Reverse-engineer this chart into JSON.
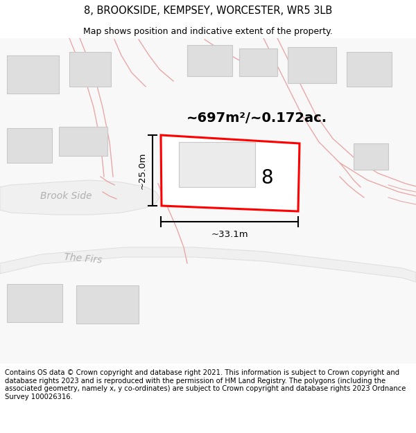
{
  "title": "8, BROOKSIDE, KEMPSEY, WORCESTER, WR5 3LB",
  "subtitle": "Map shows position and indicative extent of the property.",
  "footer": "Contains OS data © Crown copyright and database right 2021. This information is subject to Crown copyright and database rights 2023 and is reproduced with the permission of HM Land Registry. The polygons (including the associated geometry, namely x, y co-ordinates) are subject to Crown copyright and database rights 2023 Ordnance Survey 100026316.",
  "area_label": "~697m²/~0.172ac.",
  "width_label": "~33.1m",
  "height_label": "~25.0m",
  "number_label": "8",
  "map_bg": "#f8f8f8",
  "road_fill": "#f2d8d8",
  "road_edge": "#e8a8a8",
  "building_fill": "#dedede",
  "building_edge": "#c8c8c8",
  "plot_fill": "#ffffff",
  "plot_edge": "#ff0000",
  "dim_color": "#000000",
  "street_color": "#aaaaaa",
  "title_fontsize": 10.5,
  "subtitle_fontsize": 9,
  "footer_fontsize": 7.2,
  "area_fontsize": 14,
  "number_fontsize": 20,
  "street_fontsize": 10,
  "dim_fontsize": 9.5
}
